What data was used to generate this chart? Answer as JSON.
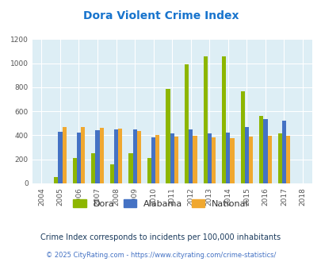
{
  "title": "Dora Violent Crime Index",
  "title_color": "#1874cd",
  "years": [
    2004,
    2005,
    2006,
    2007,
    2008,
    2009,
    2010,
    2011,
    2012,
    2013,
    2014,
    2015,
    2016,
    2017,
    2018
  ],
  "dora": [
    0,
    50,
    210,
    250,
    160,
    250,
    210,
    790,
    995,
    1055,
    1055,
    770,
    560,
    415,
    0
  ],
  "alabama": [
    0,
    430,
    420,
    445,
    450,
    450,
    385,
    415,
    450,
    415,
    420,
    470,
    535,
    525,
    0
  ],
  "national": [
    0,
    470,
    470,
    460,
    455,
    435,
    400,
    390,
    395,
    385,
    380,
    390,
    395,
    395,
    0
  ],
  "dora_color": "#8db600",
  "alabama_color": "#4472c4",
  "national_color": "#f0a830",
  "bg_color": "#ddeef5",
  "ylim": [
    0,
    1200
  ],
  "yticks": [
    0,
    200,
    400,
    600,
    800,
    1000,
    1200
  ],
  "subtitle": "Crime Index corresponds to incidents per 100,000 inhabitants",
  "subtitle_color": "#1a3a5c",
  "footer": "© 2025 CityRating.com - https://www.cityrating.com/crime-statistics/",
  "footer_color": "#4472c4",
  "legend_labels": [
    "Dora",
    "Alabama",
    "National"
  ],
  "bar_width": 0.22
}
